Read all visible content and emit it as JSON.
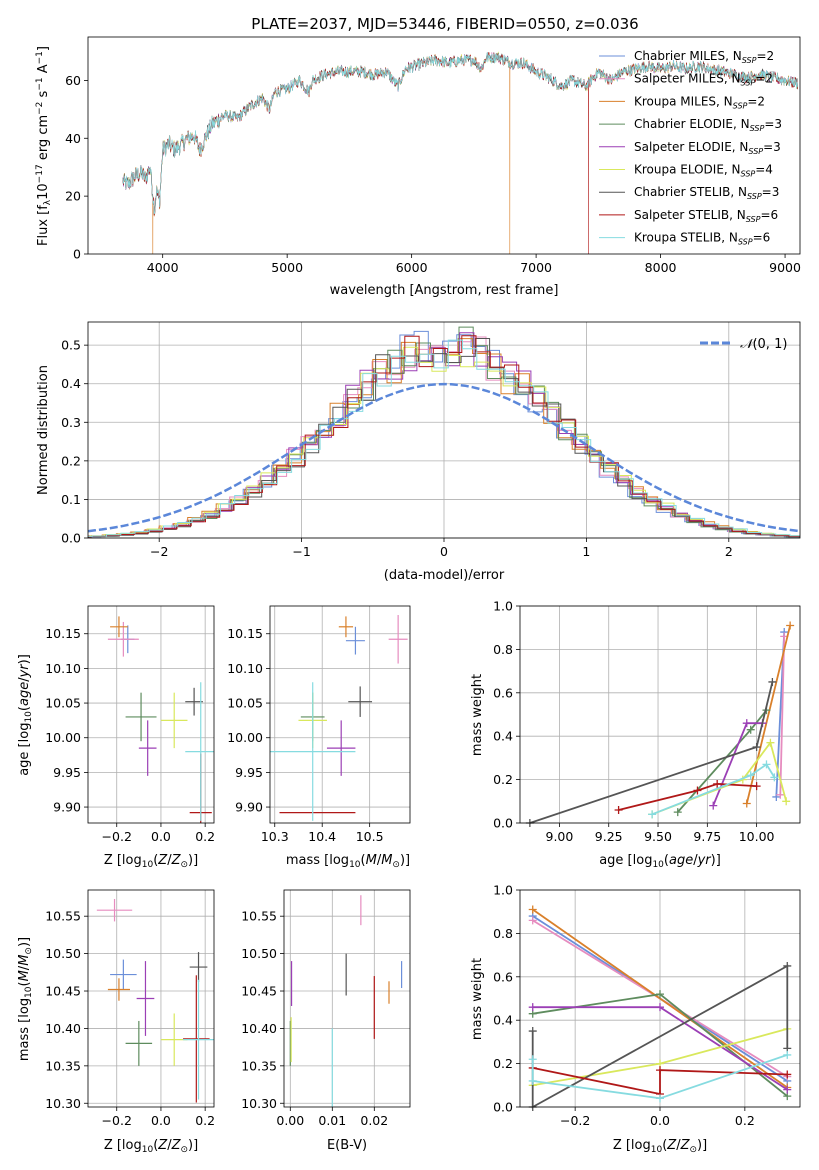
{
  "figure": {
    "title": "PLATE=2037, MJD=53446, FIBERID=0550, z=0.036",
    "colors": {
      "Chabrier MILES": "#6b8fd9",
      "Salpeter MILES": "#e68cbf",
      "Kroupa MILES": "#d9802b",
      "Chabrier ELODIE": "#5e8c5e",
      "Salpeter ELODIE": "#9b3fb5",
      "Kroupa ELODIE": "#d9e85c",
      "Chabrier STELIB": "#555555",
      "Salpeter STELIB": "#b01818",
      "Kroupa STELIB": "#86dbe0",
      "N01": "#5b87d9"
    }
  },
  "chart_data": [
    {
      "id": "spectrum",
      "type": "line",
      "title": "PLATE=2037, MJD=53446, FIBERID=0550, z=0.036",
      "xlabel": "wavelength [Angstrom, rest frame]",
      "ylabel": "Flux [f_λ 10^-17 erg cm^-2 s^-1 A^-1]",
      "xlim": [
        3400,
        9120
      ],
      "ylim": [
        0,
        75
      ],
      "xticks": [
        4000,
        5000,
        6000,
        7000,
        8000,
        9000
      ],
      "yticks": [
        0,
        20,
        40,
        60
      ],
      "legend": "top-right",
      "series_labels": [
        "Chabrier MILES, N_SSP=2",
        "Salpeter MILES, N_SSP=2",
        "Kroupa MILES, N_SSP=2",
        "Chabrier ELODIE, N_SSP=3",
        "Salpeter ELODIE, N_SSP=3",
        "Kroupa ELODIE, N_SSP=4",
        "Chabrier STELIB, N_SSP=3",
        "Salpeter STELIB, N_SSP=6",
        "Kroupa STELIB, N_SSP=6"
      ],
      "series_keys": [
        "Chabrier MILES",
        "Salpeter MILES",
        "Kroupa MILES",
        "Chabrier ELODIE",
        "Salpeter ELODIE",
        "Kroupa ELODIE",
        "Chabrier STELIB",
        "Salpeter STELIB",
        "Kroupa STELIB"
      ],
      "continuum": [
        [
          3680,
          25
        ],
        [
          3720,
          24
        ],
        [
          3780,
          27
        ],
        [
          3830,
          28
        ],
        [
          3860,
          26
        ],
        [
          3900,
          30
        ],
        [
          3935,
          15
        ],
        [
          3950,
          22
        ],
        [
          3975,
          18
        ],
        [
          4000,
          36
        ],
        [
          4050,
          38
        ],
        [
          4100,
          36
        ],
        [
          4150,
          38
        ],
        [
          4200,
          40
        ],
        [
          4250,
          41
        ],
        [
          4300,
          36
        ],
        [
          4340,
          40
        ],
        [
          4400,
          45
        ],
        [
          4500,
          48
        ],
        [
          4600,
          47
        ],
        [
          4700,
          51
        ],
        [
          4800,
          54
        ],
        [
          4860,
          50
        ],
        [
          4900,
          56
        ],
        [
          5000,
          57
        ],
        [
          5100,
          60
        ],
        [
          5175,
          56
        ],
        [
          5200,
          60
        ],
        [
          5300,
          62
        ],
        [
          5400,
          63
        ],
        [
          5500,
          63
        ],
        [
          5600,
          63
        ],
        [
          5700,
          62
        ],
        [
          5800,
          63
        ],
        [
          5890,
          58
        ],
        [
          5950,
          64
        ],
        [
          6100,
          66
        ],
        [
          6200,
          67
        ],
        [
          6300,
          66
        ],
        [
          6400,
          67
        ],
        [
          6500,
          67
        ],
        [
          6560,
          64
        ],
        [
          6600,
          68
        ],
        [
          6700,
          68
        ],
        [
          6800,
          66
        ],
        [
          6900,
          66
        ],
        [
          7000,
          63
        ],
        [
          7100,
          61
        ],
        [
          7200,
          58
        ],
        [
          7300,
          60
        ],
        [
          7400,
          58
        ],
        [
          7500,
          63
        ],
        [
          7600,
          60
        ],
        [
          7700,
          63
        ],
        [
          7800,
          64
        ],
        [
          7900,
          65
        ],
        [
          8000,
          64
        ],
        [
          8100,
          65
        ],
        [
          8200,
          64
        ],
        [
          8300,
          65
        ],
        [
          8400,
          64
        ],
        [
          8500,
          63
        ],
        [
          8600,
          62
        ],
        [
          8700,
          61
        ],
        [
          8800,
          62
        ],
        [
          8900,
          61
        ],
        [
          9000,
          60
        ],
        [
          9100,
          59
        ]
      ],
      "dropouts": [
        {
          "series": "Kroupa MILES",
          "at": 3920
        },
        {
          "series": "Kroupa MILES",
          "at": 6790
        },
        {
          "series": "Salpeter STELIB",
          "at": 7420
        }
      ]
    },
    {
      "id": "residuals",
      "type": "line",
      "xlabel": "(data-model)/error",
      "ylabel": "Normed distribution",
      "xlim": [
        -2.5,
        2.5
      ],
      "ylim": [
        0,
        0.56
      ],
      "xticks": [
        -2,
        -1,
        0,
        1,
        2
      ],
      "yticks": [
        0.0,
        0.1,
        0.2,
        0.3,
        0.4,
        0.5
      ],
      "grid": true,
      "legend": "top-right",
      "reference_label": "N(0,1)",
      "bin_width": 0.1
    },
    {
      "id": "age-vs-z",
      "type": "scatter",
      "xlabel": "Z [log10(Z/Z⊙)]",
      "ylabel": "age  [log10(age/yr)]",
      "xlim": [
        -0.33,
        0.24
      ],
      "ylim": [
        9.877,
        10.19
      ],
      "xticks": [
        -0.2,
        0.0,
        0.2
      ],
      "xtick_labels": [
        "−0.2",
        "0.0",
        "0.2"
      ],
      "yticks": [
        9.9,
        9.95,
        10.0,
        10.05,
        10.1,
        10.15
      ],
      "grid": true,
      "points": [
        {
          "series": "Chabrier MILES",
          "x": -0.15,
          "y": 10.142,
          "xerr": 0.03,
          "yerr": 0.02
        },
        {
          "series": "Salpeter MILES",
          "x": -0.17,
          "y": 10.142,
          "xerr": 0.07,
          "yerr": 0.025
        },
        {
          "series": "Kroupa MILES",
          "x": -0.19,
          "y": 10.16,
          "xerr": 0.04,
          "yerr": 0.015
        },
        {
          "series": "Chabrier ELODIE",
          "x": -0.09,
          "y": 10.03,
          "xerr": 0.07,
          "yerr": 0.035
        },
        {
          "series": "Salpeter ELODIE",
          "x": -0.06,
          "y": 9.985,
          "xerr": 0.04,
          "yerr": 0.04
        },
        {
          "series": "Kroupa ELODIE",
          "x": 0.06,
          "y": 10.025,
          "xerr": 0.06,
          "yerr": 0.04
        },
        {
          "series": "Chabrier STELIB",
          "x": 0.15,
          "y": 10.052,
          "xerr": 0.04,
          "yerr": 0.02
        },
        {
          "series": "Salpeter STELIB",
          "x": 0.18,
          "y": 9.892,
          "xerr": 0.05,
          "yerr": 0.085
        },
        {
          "series": "Kroupa STELIB",
          "x": 0.18,
          "y": 9.98,
          "xerr": 0.07,
          "yerr": 0.1
        }
      ]
    },
    {
      "id": "age-vs-mass",
      "type": "scatter",
      "xlabel": "mass [log10(M/M⊙)]",
      "xlim": [
        10.29,
        10.585
      ],
      "ylim": [
        9.877,
        10.19
      ],
      "xticks": [
        10.3,
        10.4,
        10.5
      ],
      "yticks": [
        9.9,
        9.95,
        10.0,
        10.05,
        10.1,
        10.15
      ],
      "grid": true,
      "points": [
        {
          "series": "Chabrier MILES",
          "x": 10.47,
          "y": 10.14,
          "xerr": 0.02,
          "yerr": 0.02
        },
        {
          "series": "Salpeter MILES",
          "x": 10.56,
          "y": 10.142,
          "xerr": 0.02,
          "yerr": 0.035
        },
        {
          "series": "Kroupa MILES",
          "x": 10.45,
          "y": 10.16,
          "xerr": 0.015,
          "yerr": 0.015
        },
        {
          "series": "Chabrier ELODIE",
          "x": 10.38,
          "y": 10.03,
          "xerr": 0.025,
          "yerr": 0.035
        },
        {
          "series": "Salpeter ELODIE",
          "x": 10.44,
          "y": 9.985,
          "xerr": 0.03,
          "yerr": 0.04
        },
        {
          "series": "Kroupa ELODIE",
          "x": 10.38,
          "y": 10.025,
          "xerr": 0.03,
          "yerr": 0.04
        },
        {
          "series": "Chabrier STELIB",
          "x": 10.48,
          "y": 10.052,
          "xerr": 0.025,
          "yerr": 0.022
        },
        {
          "series": "Salpeter STELIB",
          "x": 10.39,
          "y": 9.892,
          "xerr": 0.08,
          "yerr": 0.0
        },
        {
          "series": "Kroupa STELIB",
          "x": 10.38,
          "y": 9.98,
          "xerr": 0.09,
          "yerr": 0.1
        }
      ]
    },
    {
      "id": "weight-vs-age",
      "type": "line",
      "xlabel": "age  [log10(age/yr)]",
      "ylabel": "mass weight",
      "xlim": [
        8.8,
        10.22
      ],
      "ylim": [
        0,
        1
      ],
      "xticks": [
        9.0,
        9.25,
        9.5,
        9.75,
        10.0
      ],
      "yticks": [
        0.0,
        0.2,
        0.4,
        0.6,
        0.8,
        1.0
      ],
      "grid": true,
      "series": [
        {
          "series": "Chabrier MILES",
          "points": [
            [
              10.1,
              0.12
            ],
            [
              10.14,
              0.88
            ]
          ]
        },
        {
          "series": "Salpeter MILES",
          "points": [
            [
              10.12,
              0.13
            ],
            [
              10.14,
              0.86
            ]
          ]
        },
        {
          "series": "Kroupa MILES",
          "points": [
            [
              9.95,
              0.09
            ],
            [
              10.17,
              0.91
            ]
          ]
        },
        {
          "series": "Chabrier ELODIE",
          "points": [
            [
              9.6,
              0.05
            ],
            [
              9.97,
              0.43
            ],
            [
              10.05,
              0.52
            ]
          ]
        },
        {
          "series": "Salpeter ELODIE",
          "points": [
            [
              9.78,
              0.08
            ],
            [
              9.95,
              0.46
            ],
            [
              10.03,
              0.46
            ]
          ]
        },
        {
          "series": "Kroupa ELODIE",
          "points": [
            [
              9.47,
              0.04
            ],
            [
              9.93,
              0.2
            ],
            [
              10.07,
              0.37
            ],
            [
              10.15,
              0.1
            ]
          ]
        },
        {
          "series": "Chabrier STELIB",
          "points": [
            [
              8.85,
              0.0
            ],
            [
              10.0,
              0.35
            ],
            [
              10.08,
              0.65
            ]
          ]
        },
        {
          "series": "Salpeter STELIB",
          "points": [
            [
              9.3,
              0.06
            ],
            [
              9.7,
              0.15
            ],
            [
              9.8,
              0.18
            ],
            [
              10.0,
              0.17
            ]
          ]
        },
        {
          "series": "Kroupa STELIB",
          "points": [
            [
              9.47,
              0.04
            ],
            [
              9.97,
              0.22
            ],
            [
              10.05,
              0.27
            ],
            [
              10.09,
              0.21
            ]
          ]
        }
      ]
    },
    {
      "id": "mass-vs-z",
      "type": "scatter",
      "xlabel": "Z [log10(Z/Z⊙)]",
      "ylabel": "mass [log10(M/M⊙)]",
      "xlim": [
        -0.33,
        0.24
      ],
      "ylim": [
        10.295,
        10.585
      ],
      "xticks": [
        -0.2,
        0.0,
        0.2
      ],
      "xtick_labels": [
        "−0.2",
        "0.0",
        "0.2"
      ],
      "yticks": [
        10.3,
        10.35,
        10.4,
        10.45,
        10.5,
        10.55
      ],
      "grid": true,
      "points": [
        {
          "series": "Chabrier MILES",
          "x": -0.17,
          "y": 10.472,
          "xerr": 0.06,
          "yerr": 0.02
        },
        {
          "series": "Salpeter MILES",
          "x": -0.21,
          "y": 10.558,
          "xerr": 0.08,
          "yerr": 0.015
        },
        {
          "series": "Kroupa MILES",
          "x": -0.19,
          "y": 10.452,
          "xerr": 0.05,
          "yerr": 0.015
        },
        {
          "series": "Chabrier ELODIE",
          "x": -0.1,
          "y": 10.38,
          "xerr": 0.06,
          "yerr": 0.03
        },
        {
          "series": "Salpeter ELODIE",
          "x": -0.07,
          "y": 10.44,
          "xerr": 0.04,
          "yerr": 0.05
        },
        {
          "series": "Kroupa ELODIE",
          "x": 0.06,
          "y": 10.385,
          "xerr": 0.06,
          "yerr": 0.035
        },
        {
          "series": "Chabrier STELIB",
          "x": 0.17,
          "y": 10.482,
          "xerr": 0.04,
          "yerr": 0.02
        },
        {
          "series": "Salpeter STELIB",
          "x": 0.16,
          "y": 10.386,
          "xerr": 0.06,
          "yerr": 0.085
        },
        {
          "series": "Kroupa STELIB",
          "x": 0.17,
          "y": 10.385,
          "xerr": 0.07,
          "yerr": 0.08
        }
      ]
    },
    {
      "id": "mass-vs-ebv",
      "type": "scatter",
      "xlabel": "E(B-V)",
      "xlim": [
        -0.0015,
        0.0285
      ],
      "ylim": [
        10.295,
        10.585
      ],
      "xticks": [
        0.0,
        0.01,
        0.02
      ],
      "xtick_labels": [
        "0.00",
        "0.01",
        "0.02"
      ],
      "yticks": [
        10.3,
        10.35,
        10.4,
        10.45,
        10.5,
        10.55
      ],
      "grid": true,
      "points": [
        {
          "series": "Chabrier MILES",
          "x": 0.0265,
          "y": 10.472,
          "xerr": 0.0,
          "yerr": 0.018
        },
        {
          "series": "Salpeter MILES",
          "x": 0.0168,
          "y": 10.558,
          "xerr": 0.0,
          "yerr": 0.02
        },
        {
          "series": "Kroupa MILES",
          "x": 0.0235,
          "y": 10.448,
          "xerr": 0.0,
          "yerr": 0.015
        },
        {
          "series": "Chabrier ELODIE",
          "x": 0.0,
          "y": 10.38,
          "xerr": 0.0,
          "yerr": 0.03
        },
        {
          "series": "Salpeter ELODIE",
          "x": 0.0003,
          "y": 10.46,
          "xerr": 0.0,
          "yerr": 0.03
        },
        {
          "series": "Kroupa ELODIE",
          "x": 0.0002,
          "y": 10.385,
          "xerr": 0.0,
          "yerr": 0.03
        },
        {
          "series": "Chabrier STELIB",
          "x": 0.0133,
          "y": 10.472,
          "xerr": 0.0,
          "yerr": 0.028
        },
        {
          "series": "Salpeter STELIB",
          "x": 0.02,
          "y": 10.428,
          "xerr": 0.0,
          "yerr": 0.042
        },
        {
          "series": "Kroupa STELIB",
          "x": 0.01,
          "y": 10.33,
          "xerr": 0.0,
          "yerr": 0.07
        }
      ]
    },
    {
      "id": "weight-vs-z",
      "type": "line",
      "xlabel": "Z [log10(Z/Z⊙)]",
      "ylabel": "mass weight",
      "xlim": [
        -0.33,
        0.33
      ],
      "ylim": [
        0,
        1
      ],
      "xticks": [
        -0.2,
        0.0,
        0.2
      ],
      "xtick_labels": [
        "−0.2",
        "0.0",
        "0.2"
      ],
      "yticks": [
        0.0,
        0.2,
        0.4,
        0.6,
        0.8,
        1.0
      ],
      "grid": true,
      "series": [
        {
          "series": "Chabrier MILES",
          "points": [
            [
              -0.3,
              0.88
            ],
            [
              0.3,
              0.12
            ]
          ]
        },
        {
          "series": "Salpeter MILES",
          "points": [
            [
              -0.3,
              0.86
            ],
            [
              0.3,
              0.14
            ]
          ]
        },
        {
          "series": "Kroupa MILES",
          "points": [
            [
              -0.3,
              0.91
            ],
            [
              0.3,
              0.09
            ]
          ]
        },
        {
          "series": "Chabrier ELODIE",
          "points": [
            [
              -0.3,
              0.43
            ],
            [
              0.0,
              0.52
            ],
            [
              0.3,
              0.05
            ]
          ]
        },
        {
          "series": "Salpeter ELODIE",
          "points": [
            [
              -0.3,
              0.46
            ],
            [
              0.0,
              0.46
            ],
            [
              0.3,
              0.08
            ]
          ]
        },
        {
          "series": "Kroupa ELODIE",
          "points": [
            [
              -0.3,
              0.1
            ],
            [
              0.0,
              0.2
            ],
            [
              0.3,
              0.36
            ]
          ]
        },
        {
          "series": "Chabrier STELIB",
          "points": [
            [
              -0.3,
              0.35
            ],
            [
              -0.3,
              0.0
            ],
            [
              0.3,
              0.65
            ],
            [
              0.3,
              0.27
            ]
          ]
        },
        {
          "series": "Salpeter STELIB",
          "points": [
            [
              -0.3,
              0.18
            ],
            [
              0.0,
              0.06
            ],
            [
              0.0,
              0.17
            ],
            [
              0.3,
              0.15
            ]
          ]
        },
        {
          "series": "Kroupa STELIB",
          "points": [
            [
              -0.3,
              0.22
            ],
            [
              -0.3,
              0.12
            ],
            [
              0.0,
              0.04
            ],
            [
              0.3,
              0.24
            ]
          ]
        }
      ]
    }
  ]
}
